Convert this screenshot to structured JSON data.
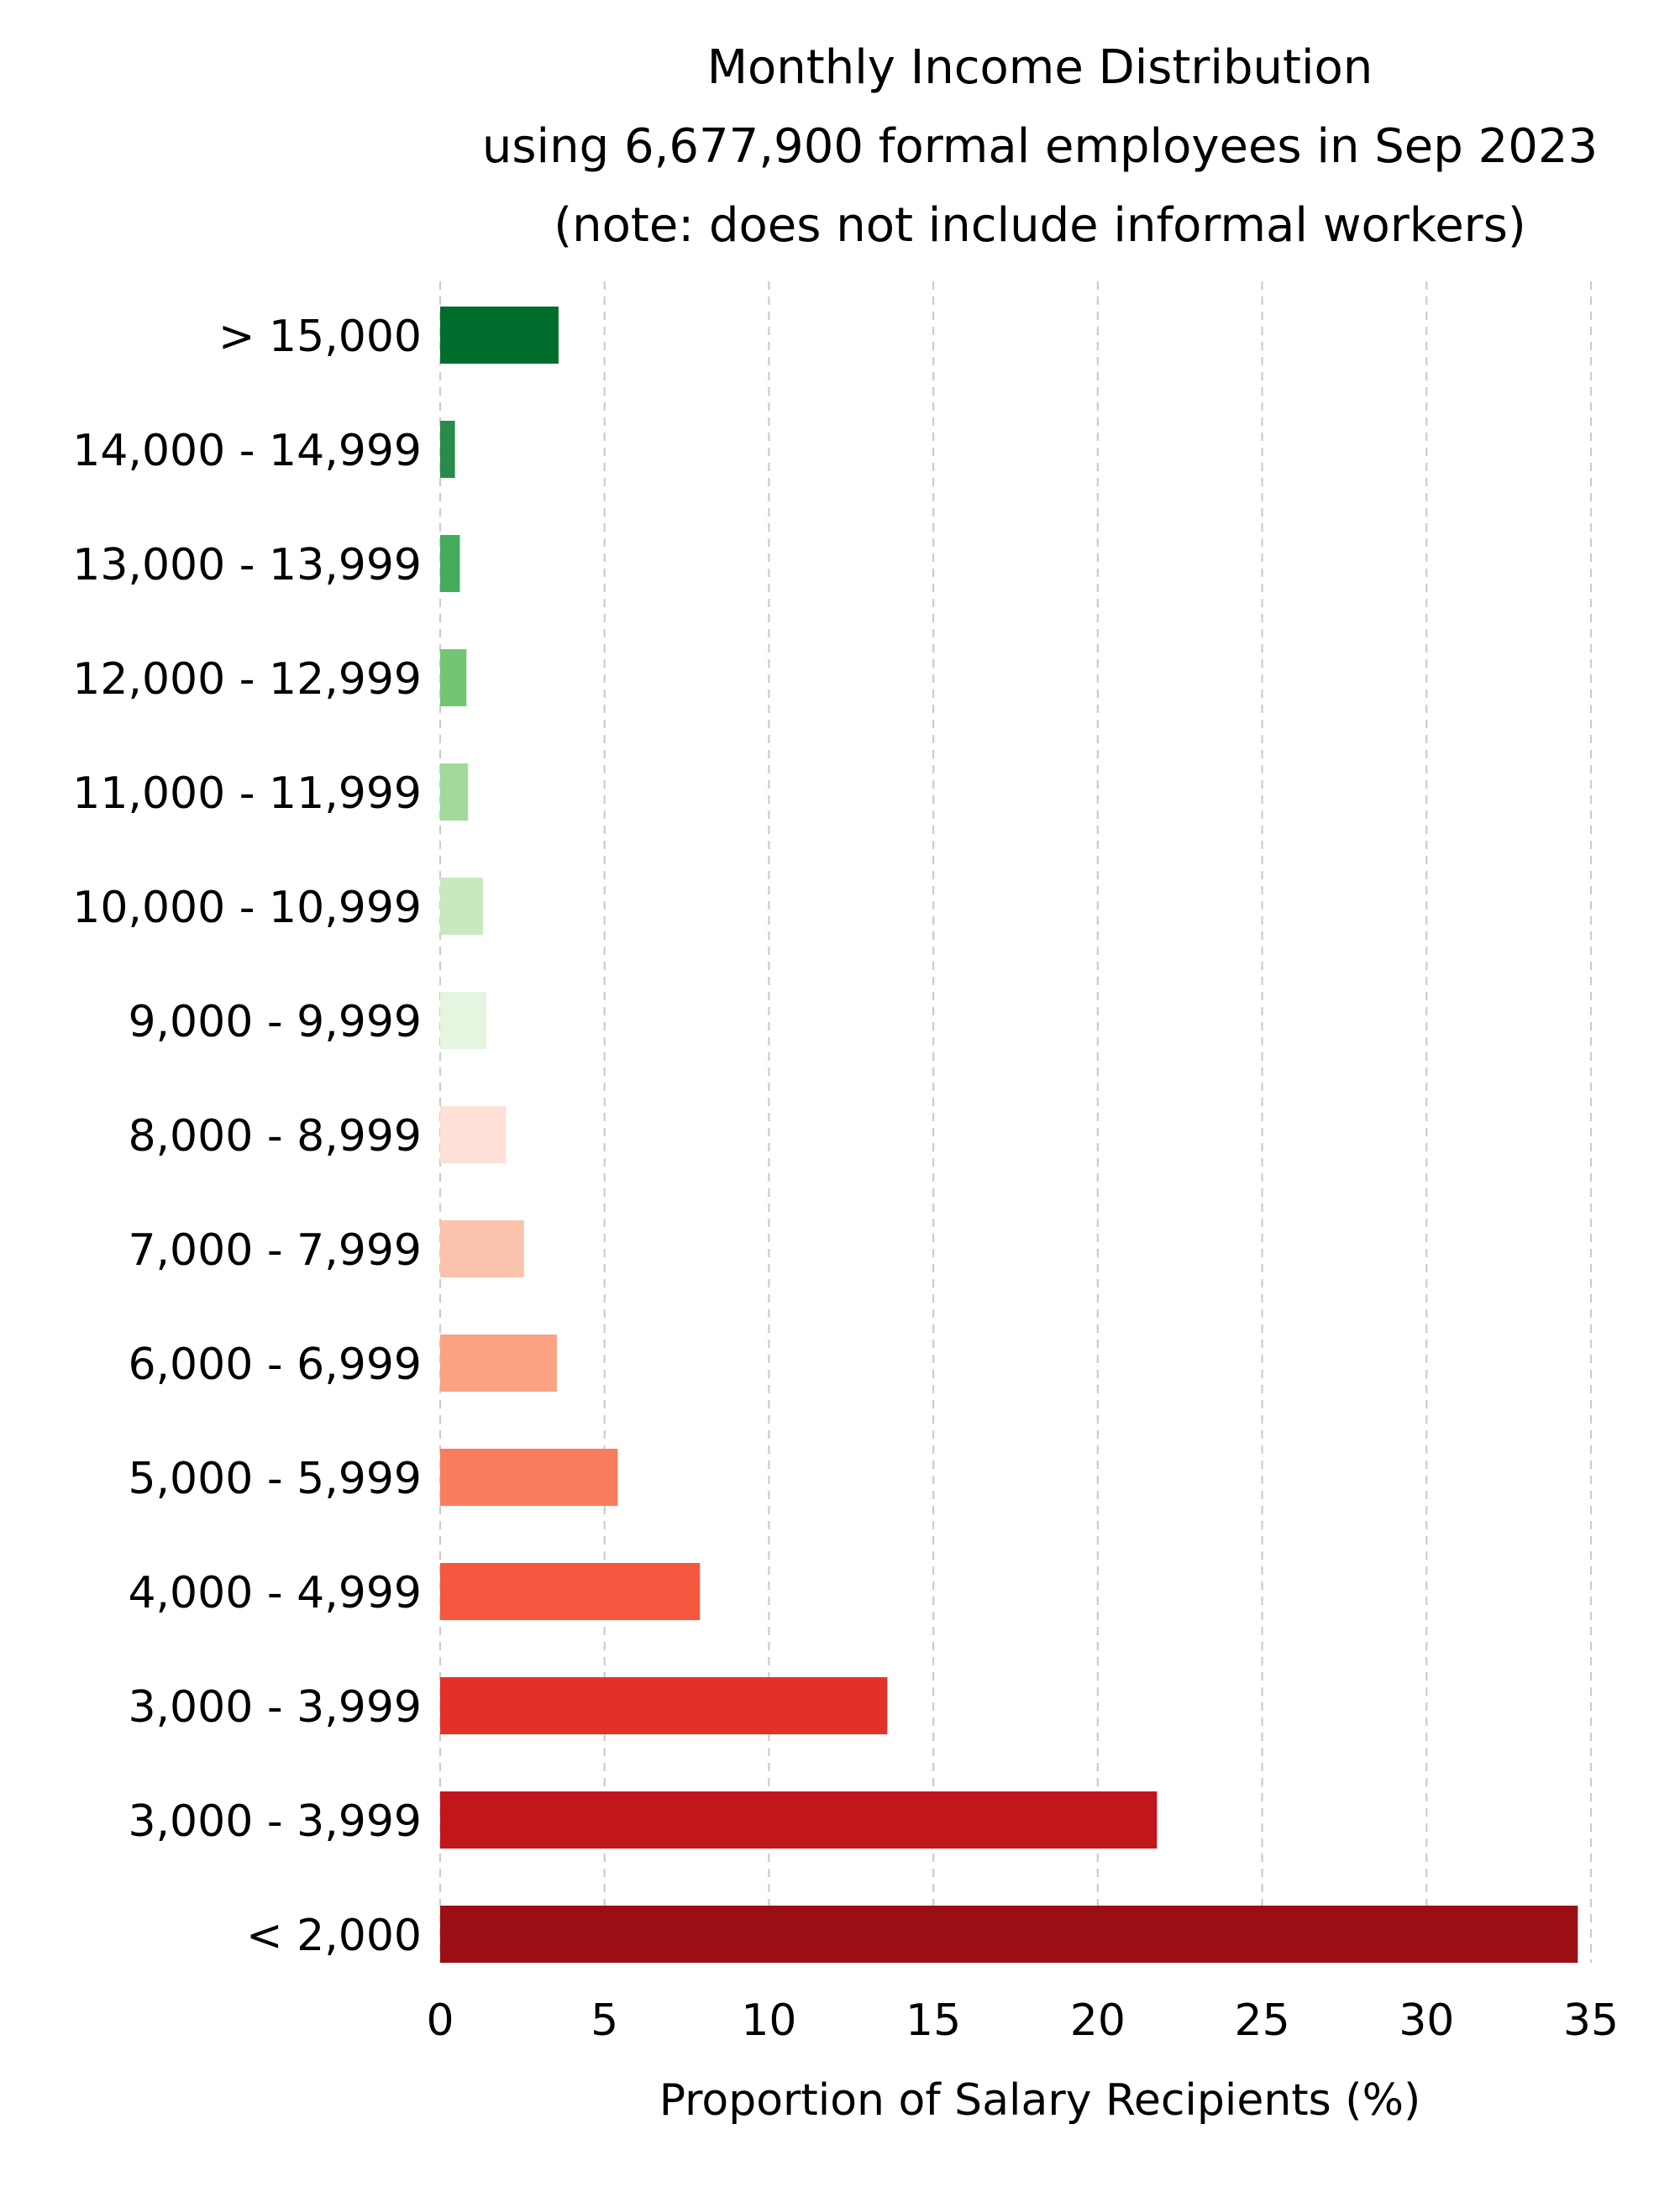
{
  "chart_data": {
    "type": "bar",
    "orientation": "horizontal",
    "title_lines": [
      "Monthly Income Distribution",
      "using 6,677,900 formal employees in Sep 2023",
      "(note: does not include informal workers)"
    ],
    "xlabel": "Proportion of Salary Recipients (%)",
    "ylabel": "",
    "xlim": [
      0,
      35
    ],
    "xticks": [
      0,
      5,
      10,
      15,
      20,
      25,
      30,
      35
    ],
    "grid": "vertical dashed",
    "categories": [
      "> 15,000",
      "14,000 - 14,999",
      "13,000 - 13,999",
      "12,000 - 12,999",
      "11,000 - 11,999",
      "10,000 - 10,999",
      "9,000 - 9,999",
      "8,000 - 8,999",
      "7,000 - 7,999",
      "6,000 - 6,999",
      "5,000 - 5,999",
      "4,000 - 4,999",
      "3,000 - 3,999",
      "3,000 - 3,999",
      "< 2,000"
    ],
    "values": [
      3.6,
      0.45,
      0.6,
      0.8,
      0.85,
      1.3,
      1.4,
      2.0,
      2.55,
      3.55,
      5.4,
      7.9,
      13.6,
      21.8,
      34.6
    ],
    "colors": [
      "#006d2c",
      "#238b45",
      "#41ab5d",
      "#74c476",
      "#a1d99b",
      "#c7e9c0",
      "#e5f5e0",
      "#fee0d2",
      "#fcbba1",
      "#fc9272",
      "#fb6a4a",
      "#ef3b2c",
      "#cb181d",
      "#a50f15",
      "#67000d"
    ],
    "colors_actual": [
      "#006d2c",
      "#2a8a4a",
      "#45ac5e",
      "#74c476",
      "#a1d99b",
      "#c8e9c0",
      "#e5f5e0",
      "#fee0d6",
      "#fcc3ac",
      "#fba283",
      "#fb7c5c",
      "#f5573f",
      "#e33029",
      "#c1161c",
      "#9b0e14"
    ]
  }
}
